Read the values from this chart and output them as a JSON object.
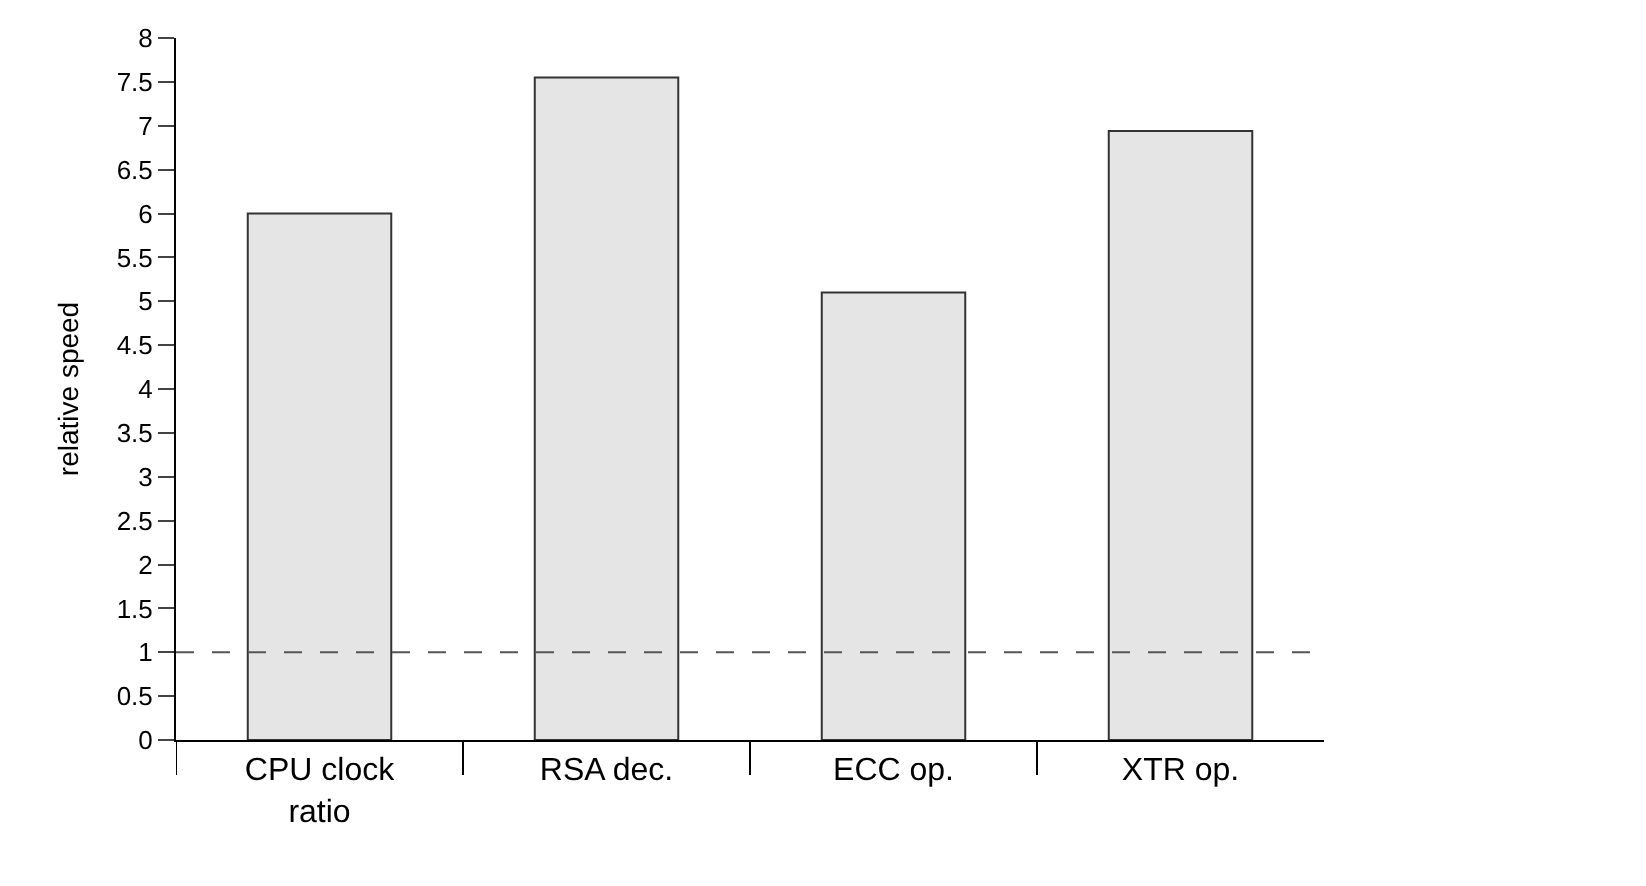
{
  "chart_data": {
    "type": "bar",
    "categories": [
      "CPU clock\nratio",
      "RSA dec.",
      "ECC op.",
      "XTR op."
    ],
    "values": [
      6.0,
      7.55,
      5.1,
      6.94
    ],
    "color": "#e5e5e5",
    "ylabel": "relative speed",
    "ylim": [
      0,
      8
    ],
    "yticks": [
      0,
      0.5,
      1,
      1.5,
      2,
      2.5,
      3,
      3.5,
      4,
      4.5,
      5,
      5.5,
      6,
      6.5,
      7,
      7.5,
      8
    ],
    "ref_lines": [
      {
        "axis": "y",
        "value": 1,
        "color": "#555555",
        "line_style": "dashed"
      }
    ]
  }
}
